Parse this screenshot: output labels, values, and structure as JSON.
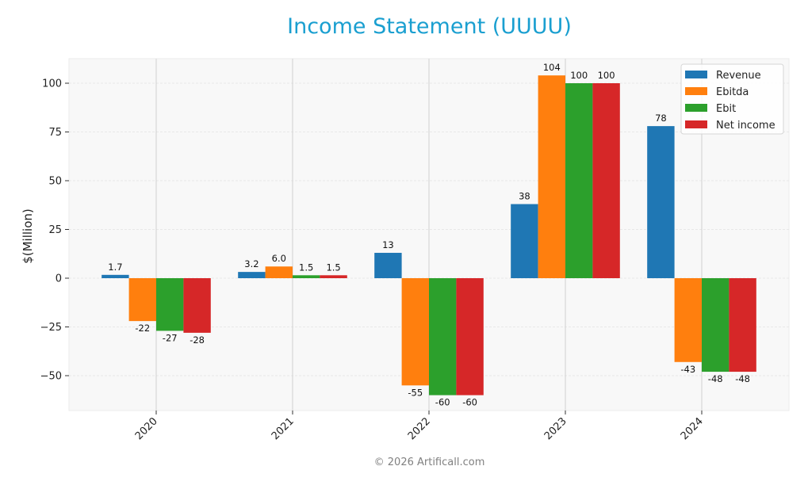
{
  "title": "Income Statement (UUUU)",
  "footer": "© 2026 Artificall.com",
  "colors": {
    "title": "#1a9fd0",
    "revenue": "#1f77b4",
    "ebitda": "#ff7f0e",
    "ebit": "#2ca02c",
    "net_income": "#d62728",
    "plot_bg": "#f8f8f8"
  },
  "chart_data": {
    "type": "bar",
    "title": "Income Statement (UUUU)",
    "xlabel": "",
    "ylabel": "$(Million)",
    "categories": [
      "2020",
      "2021",
      "2022",
      "2023",
      "2024"
    ],
    "series": [
      {
        "name": "Revenue",
        "color": "#1f77b4",
        "values": [
          1.7,
          3.2,
          13,
          38,
          78
        ],
        "labels": [
          "1.7",
          "3.2",
          "13",
          "38",
          "78"
        ]
      },
      {
        "name": "Ebitda",
        "color": "#ff7f0e",
        "values": [
          -22,
          6.0,
          -55,
          104,
          -43
        ],
        "labels": [
          "-22",
          "6.0",
          "-55",
          "104",
          "-43"
        ]
      },
      {
        "name": "Ebit",
        "color": "#2ca02c",
        "values": [
          -27,
          1.5,
          -60,
          100,
          -48
        ],
        "labels": [
          "-27",
          "1.5",
          "-60",
          "100",
          "-48"
        ]
      },
      {
        "name": "Net income",
        "color": "#d62728",
        "values": [
          -28,
          1.5,
          -60,
          100,
          -48
        ],
        "labels": [
          "-28",
          "1.5",
          "-60",
          "100",
          "-48"
        ]
      }
    ],
    "yticks": [
      -50,
      -25,
      0,
      25,
      50,
      75,
      100
    ],
    "ytick_labels": [
      "−50",
      "−25",
      "0",
      "25",
      "50",
      "75",
      "100"
    ],
    "ylim": [
      -68,
      113
    ],
    "grid": true,
    "legend_position": "upper right"
  }
}
